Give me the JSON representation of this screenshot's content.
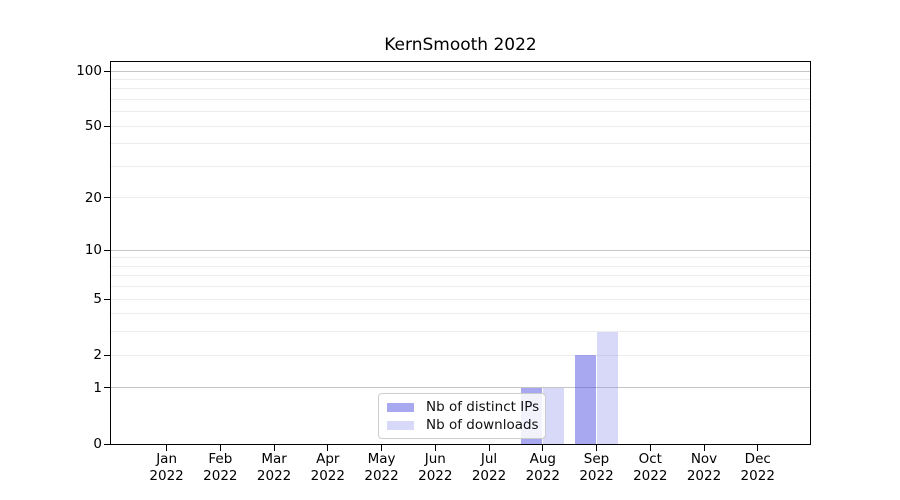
{
  "chart_data": {
    "type": "bar",
    "title": "KernSmooth 2022",
    "categories": [
      "Jan 2022",
      "Feb 2022",
      "Mar 2022",
      "Apr 2022",
      "May 2022",
      "Jun 2022",
      "Jul 2022",
      "Aug 2022",
      "Sep 2022",
      "Oct 2022",
      "Nov 2022",
      "Dec 2022"
    ],
    "series": [
      {
        "name": "Nb of distinct IPs",
        "color": "#a8a8f0",
        "fill": "rgba(81,81,225,0.5)",
        "values": [
          0,
          0,
          0,
          0,
          0,
          0,
          0,
          1,
          2,
          0,
          0,
          0
        ]
      },
      {
        "name": "Nb of downloads",
        "color": "#d8d8f8",
        "fill": "rgba(144,144,235,0.35)",
        "values": [
          0,
          0,
          0,
          0,
          0,
          0,
          0,
          1,
          3,
          0,
          0,
          0
        ]
      }
    ],
    "xlabel": "",
    "ylabel": "",
    "y_scale": "log1p",
    "ylim": [
      0,
      112
    ],
    "y_ticks": [
      0,
      1,
      2,
      5,
      10,
      20,
      50,
      100
    ],
    "major_gridlines": [
      1,
      10,
      100
    ],
    "minor_gridlines": [
      2,
      3,
      4,
      5,
      6,
      7,
      8,
      9,
      20,
      30,
      40,
      50,
      60,
      70,
      80,
      90
    ],
    "grid": true,
    "legend_position": "inside-bottom-center",
    "axis_color": "#000000",
    "major_grid_color": "#c5c5c5",
    "minor_grid_color": "#ececec",
    "background_color": "#ffffff"
  }
}
